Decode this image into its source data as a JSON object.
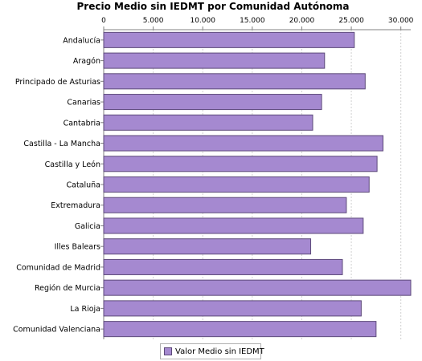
{
  "colors": {
    "bar_fill": "#a589d0",
    "bar_stroke": "#5d4a7a",
    "grid": "#d0d0d0",
    "axis": "#808080"
  },
  "chart_data": {
    "type": "bar",
    "orientation": "horizontal",
    "title": "Precio Medio sin IEDMT por Comunidad Autónoma",
    "xlabel": "",
    "ylabel": "",
    "xlim": [
      0,
      31000
    ],
    "x_ticks": [
      0,
      5000,
      10000,
      15000,
      20000,
      25000,
      30000
    ],
    "x_tick_labels": [
      "0",
      "5.000",
      "10.000",
      "15.000",
      "20.000",
      "25.000",
      "30.000"
    ],
    "x_axis_position": "top",
    "grid": true,
    "legend_position": "bottom",
    "categories": [
      "Andalucía",
      "Aragón",
      "Principado de Asturias",
      "Canarias",
      "Cantabria",
      "Castilla - La Mancha",
      "Castilla y León",
      "Cataluña",
      "Extremadura",
      "Galicia",
      "Illes Balears",
      "Comunidad de Madrid",
      "Región de Murcia",
      "La Rioja",
      "Comunidad Valenciana"
    ],
    "series": [
      {
        "name": "Valor Medio sin IEDMT",
        "values": [
          25300,
          22300,
          26400,
          22000,
          21100,
          28200,
          27600,
          26800,
          24500,
          26200,
          20900,
          24100,
          31000,
          26000,
          27500
        ]
      }
    ]
  }
}
